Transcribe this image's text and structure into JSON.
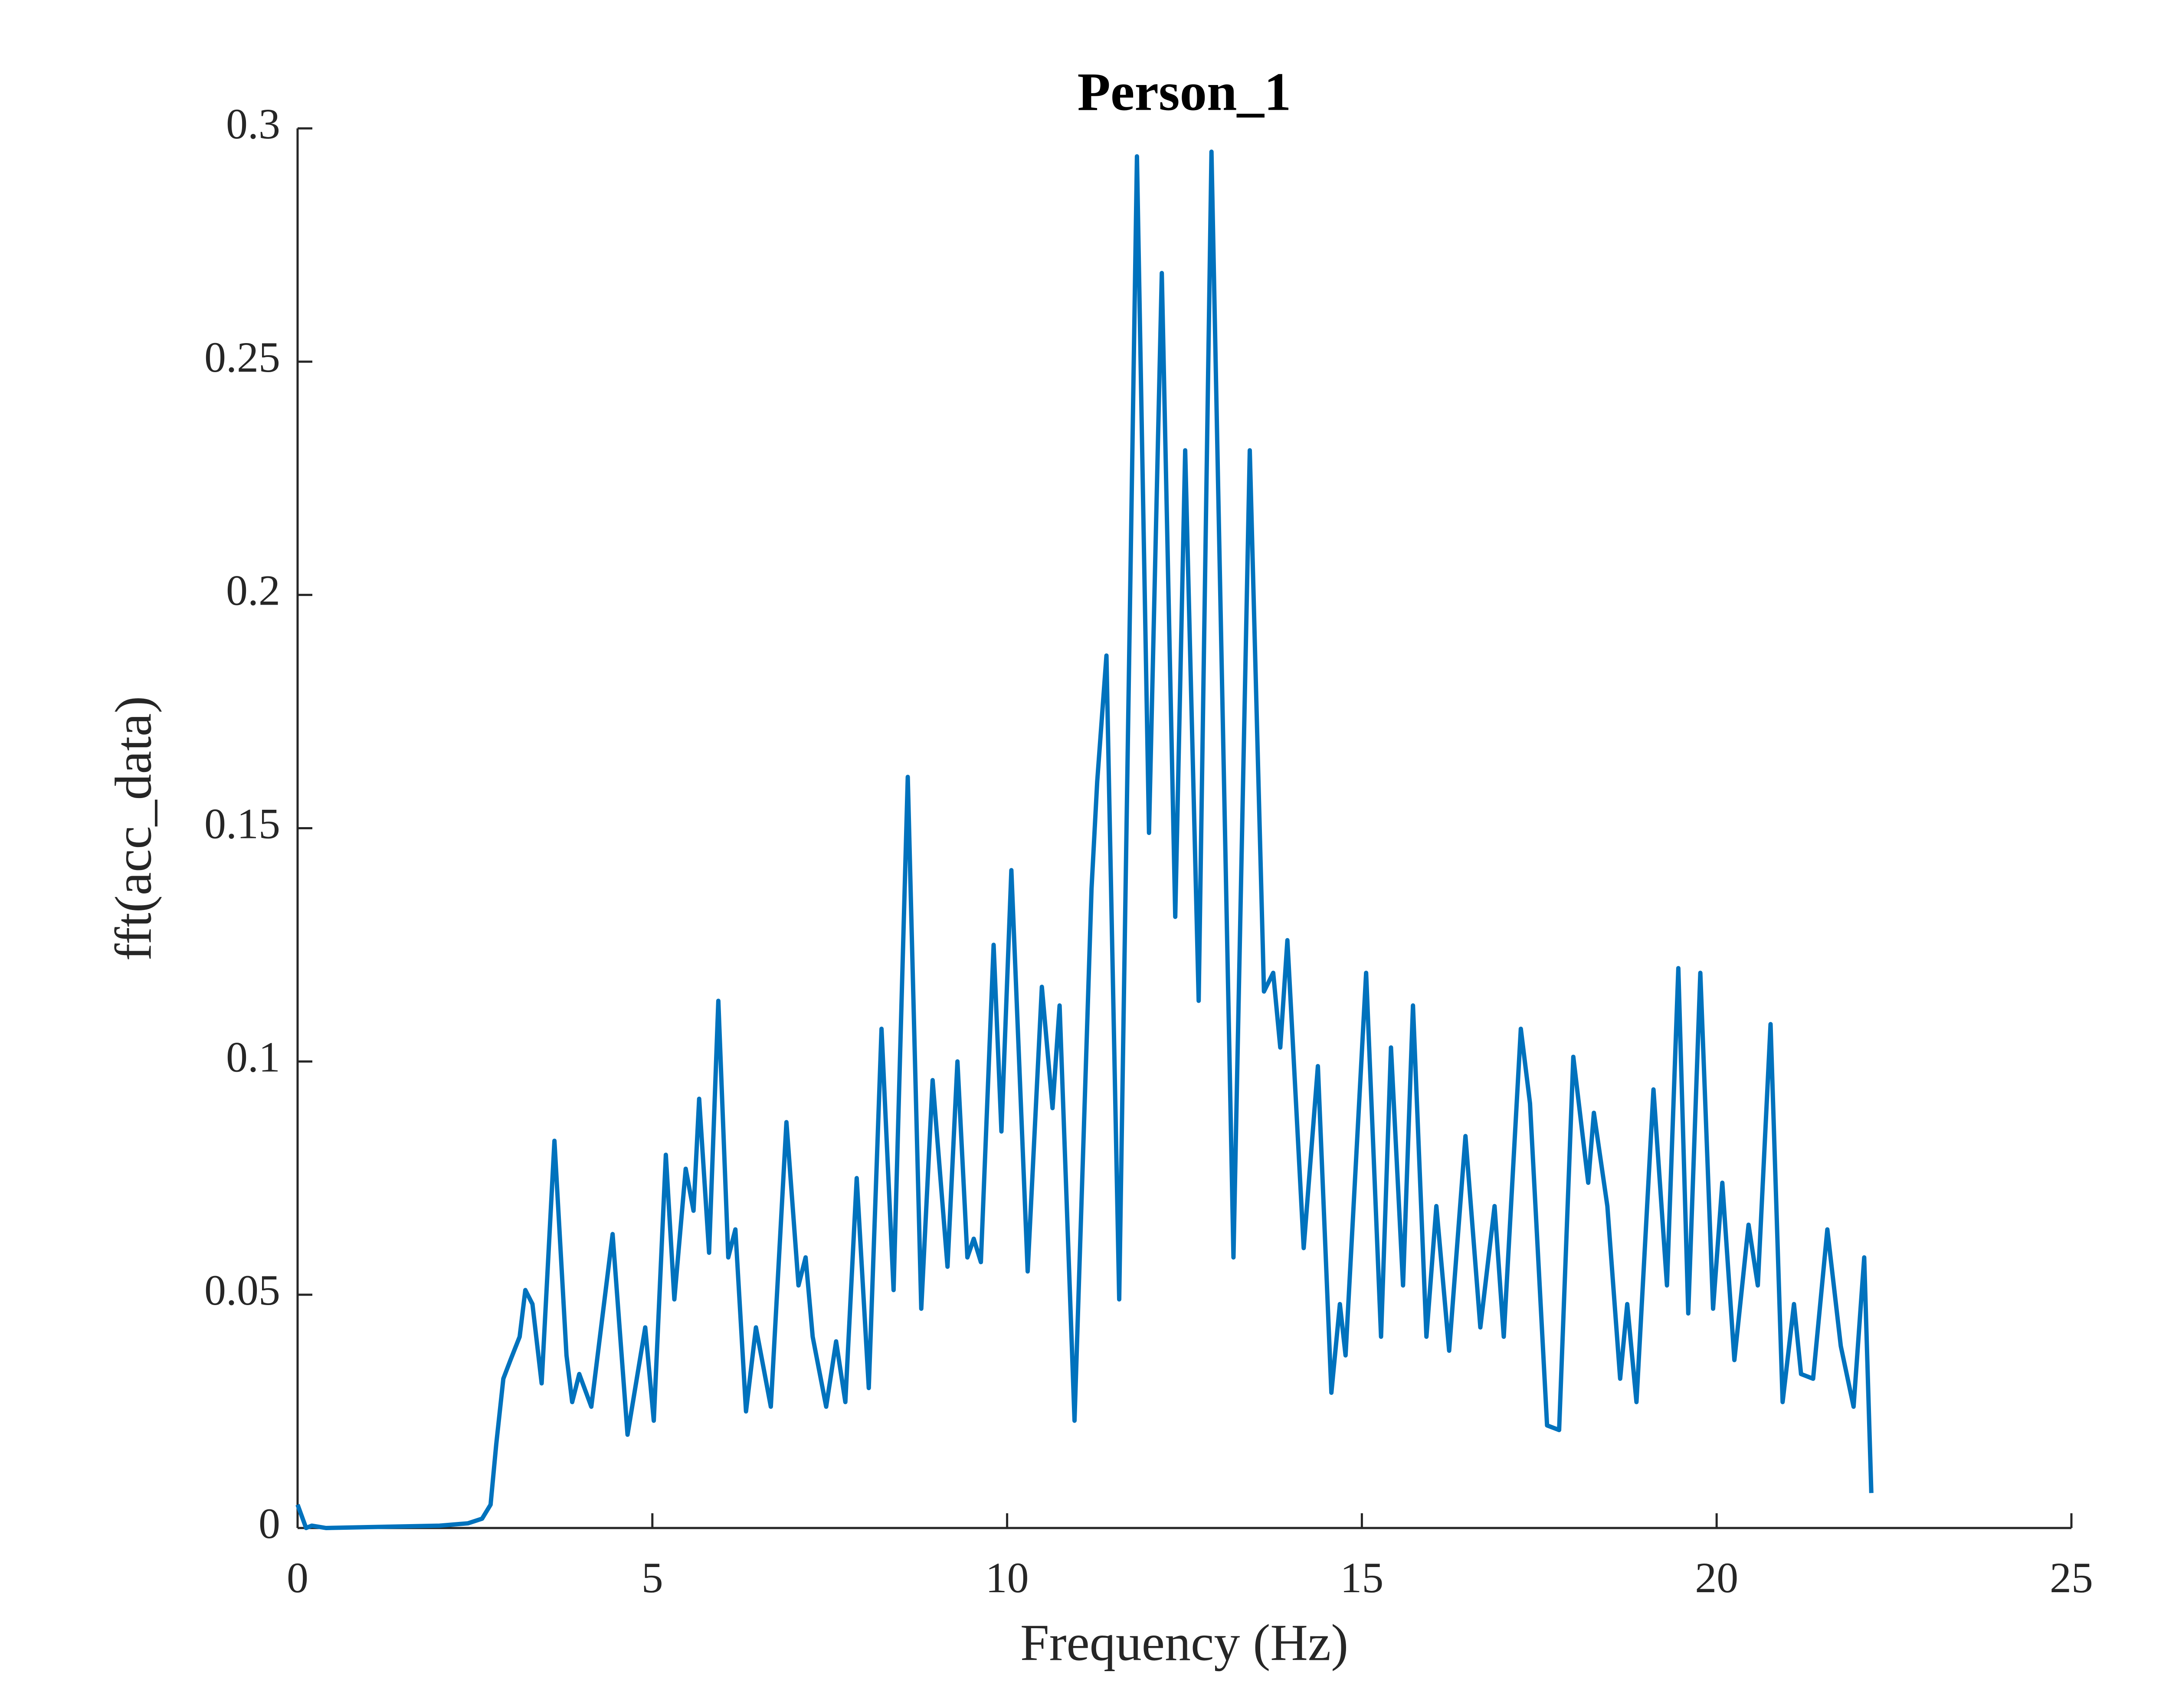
{
  "chart_data": {
    "type": "line",
    "title": "Person_1",
    "x_label": "Frequency (Hz)",
    "y_label": "fft(acc_data)",
    "xlim": [
      0,
      25
    ],
    "xticks": [
      0,
      5,
      10,
      15,
      20,
      25
    ],
    "ylim": [
      0,
      0.3
    ],
    "yticks": [
      0,
      0.05,
      0.1,
      0.15,
      0.2,
      0.25,
      0.3
    ],
    "grid": false,
    "series": [
      {
        "name": "fft(acc_data)",
        "color": "#0072bd",
        "x": [
          0,
          0.12,
          0.2,
          0.4,
          2.0,
          2.4,
          2.6,
          2.72,
          2.8,
          2.9,
          3.0,
          3.13,
          3.21,
          3.31,
          3.44,
          3.62,
          3.79,
          3.87,
          3.97,
          4.14,
          4.44,
          4.65,
          4.9,
          5.02,
          5.19,
          5.31,
          5.47,
          5.58,
          5.66,
          5.8,
          5.93,
          6.07,
          6.17,
          6.32,
          6.46,
          6.67,
          6.89,
          7.06,
          7.16,
          7.26,
          7.45,
          7.59,
          7.72,
          7.88,
          8.05,
          8.23,
          8.4,
          8.6,
          8.79,
          8.95,
          9.16,
          9.3,
          9.44,
          9.53,
          9.63,
          9.81,
          9.92,
          10.06,
          10.29,
          10.49,
          10.64,
          10.74,
          10.95,
          11.19,
          11.27,
          11.4,
          11.58,
          11.83,
          12.0,
          12.18,
          12.37,
          12.51,
          12.7,
          12.88,
          13.19,
          13.42,
          13.62,
          13.75,
          13.85,
          13.95,
          14.18,
          14.38,
          14.57,
          14.69,
          14.77,
          15.06,
          15.27,
          15.41,
          15.58,
          15.72,
          15.91,
          16.05,
          16.23,
          16.46,
          16.67,
          16.87,
          17.0,
          17.24,
          17.37,
          17.61,
          17.78,
          17.98,
          18.19,
          18.27,
          18.46,
          18.64,
          18.74,
          18.87,
          19.11,
          19.3,
          19.46,
          19.6,
          19.77,
          19.95,
          20.08,
          20.25,
          20.45,
          20.58,
          20.76,
          20.93,
          21.09,
          21.19,
          21.36,
          21.56,
          21.75,
          21.93,
          22.08,
          22.18
        ],
        "values": [
          0.005,
          0.0,
          0.0005,
          0.0,
          0.0005,
          0.001,
          0.002,
          0.005,
          0.018,
          0.032,
          0.036,
          0.041,
          0.051,
          0.048,
          0.031,
          0.083,
          0.037,
          0.027,
          0.033,
          0.026,
          0.063,
          0.02,
          0.043,
          0.023,
          0.08,
          0.049,
          0.077,
          0.068,
          0.092,
          0.059,
          0.113,
          0.058,
          0.064,
          0.025,
          0.043,
          0.026,
          0.087,
          0.052,
          0.058,
          0.041,
          0.026,
          0.04,
          0.027,
          0.075,
          0.03,
          0.107,
          0.051,
          0.161,
          0.047,
          0.096,
          0.056,
          0.1,
          0.058,
          0.062,
          0.057,
          0.125,
          0.085,
          0.141,
          0.055,
          0.116,
          0.09,
          0.112,
          0.023,
          0.137,
          0.16,
          0.187,
          0.049,
          0.294,
          0.149,
          0.269,
          0.131,
          0.231,
          0.113,
          0.295,
          0.058,
          0.231,
          0.115,
          0.119,
          0.103,
          0.126,
          0.06,
          0.099,
          0.029,
          0.048,
          0.037,
          0.119,
          0.041,
          0.103,
          0.052,
          0.112,
          0.041,
          0.069,
          0.038,
          0.084,
          0.043,
          0.069,
          0.041,
          0.107,
          0.091,
          0.022,
          0.021,
          0.101,
          0.074,
          0.089,
          0.069,
          0.032,
          0.048,
          0.027,
          0.094,
          0.052,
          0.12,
          0.046,
          0.119,
          0.047,
          0.074,
          0.036,
          0.065,
          0.052,
          0.108,
          0.027,
          0.048,
          0.033,
          0.032,
          0.064,
          0.039,
          0.026,
          0.058,
          0.0075
        ]
      }
    ]
  }
}
